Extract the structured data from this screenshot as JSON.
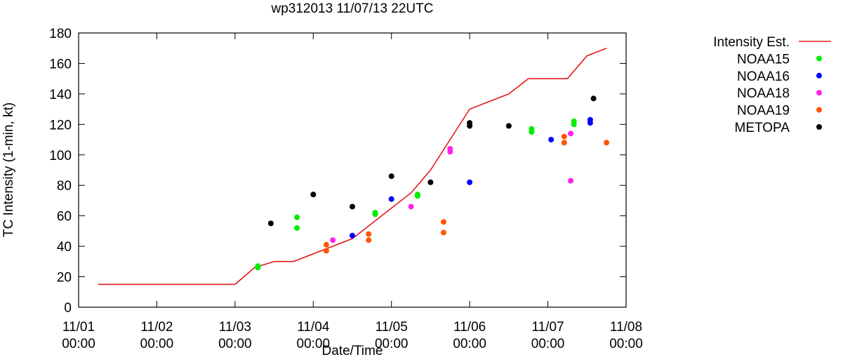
{
  "chart_data": {
    "type": "scatter",
    "title": "wp312013 11/07/13 22UTC",
    "xlabel": "Date/Time",
    "ylabel": "TC Intensity (1-min, kt)",
    "ylim": [
      0,
      180
    ],
    "yticks": [
      0,
      20,
      40,
      60,
      80,
      100,
      120,
      140,
      160,
      180
    ],
    "xlim": [
      "2013-11-01T00:00",
      "2013-11-08T00:00"
    ],
    "xticks": [
      {
        "line1": "11/01",
        "line2": "00:00"
      },
      {
        "line1": "11/02",
        "line2": "00:00"
      },
      {
        "line1": "11/03",
        "line2": "00:00"
      },
      {
        "line1": "11/04",
        "line2": "00:00"
      },
      {
        "line1": "11/05",
        "line2": "00:00"
      },
      {
        "line1": "11/06",
        "line2": "00:00"
      },
      {
        "line1": "11/07",
        "line2": "00:00"
      },
      {
        "line1": "11/08",
        "line2": "00:00"
      }
    ],
    "legend_position": "right",
    "grid": false,
    "series": [
      {
        "name": "Intensity Est.",
        "kind": "line",
        "color": "#e41a1c",
        "points": [
          [
            "2013-11-01T06:00",
            15
          ],
          [
            "2013-11-03T00:00",
            15
          ],
          [
            "2013-11-03T06:00",
            26
          ],
          [
            "2013-11-03T12:00",
            30
          ],
          [
            "2013-11-03T18:00",
            30
          ],
          [
            "2013-11-04T12:00",
            45
          ],
          [
            "2013-11-05T00:00",
            65
          ],
          [
            "2013-11-05T06:00",
            75
          ],
          [
            "2013-11-05T12:00",
            90
          ],
          [
            "2013-11-06T00:00",
            130
          ],
          [
            "2013-11-06T12:00",
            140
          ],
          [
            "2013-11-06T18:00",
            150
          ],
          [
            "2013-11-07T00:00",
            150
          ],
          [
            "2013-11-07T06:00",
            150
          ],
          [
            "2013-11-07T12:00",
            165
          ],
          [
            "2013-11-07T18:00",
            170
          ]
        ]
      },
      {
        "name": "NOAA15",
        "kind": "scatter",
        "color": "#00ee00",
        "points": [
          [
            "2013-11-03T07:00",
            27
          ],
          [
            "2013-11-03T07:00",
            26
          ],
          [
            "2013-11-03T19:00",
            59
          ],
          [
            "2013-11-03T19:00",
            52
          ],
          [
            "2013-11-04T19:00",
            62
          ],
          [
            "2013-11-04T19:00",
            61
          ],
          [
            "2013-11-05T08:00",
            74
          ],
          [
            "2013-11-05T08:00",
            73
          ],
          [
            "2013-11-06T19:00",
            117
          ],
          [
            "2013-11-06T19:00",
            115
          ],
          [
            "2013-11-07T08:00",
            122
          ],
          [
            "2013-11-07T08:00",
            120
          ]
        ]
      },
      {
        "name": "NOAA16",
        "kind": "scatter",
        "color": "#0000ff",
        "points": [
          [
            "2013-11-04T12:00",
            47
          ],
          [
            "2013-11-05T00:00",
            71
          ],
          [
            "2013-11-06T00:00",
            82
          ],
          [
            "2013-11-07T01:00",
            110
          ],
          [
            "2013-11-07T13:00",
            123
          ],
          [
            "2013-11-07T13:00",
            121
          ]
        ]
      },
      {
        "name": "NOAA18",
        "kind": "scatter",
        "color": "#ff22ee",
        "points": [
          [
            "2013-11-04T06:00",
            44
          ],
          [
            "2013-11-05T06:00",
            66
          ],
          [
            "2013-11-05T18:00",
            104
          ],
          [
            "2013-11-05T18:00",
            102
          ],
          [
            "2013-11-07T07:00",
            114
          ],
          [
            "2013-11-07T07:00",
            83
          ]
        ]
      },
      {
        "name": "NOAA19",
        "kind": "scatter",
        "color": "#ff5500",
        "points": [
          [
            "2013-11-04T04:00",
            41
          ],
          [
            "2013-11-04T04:00",
            37
          ],
          [
            "2013-11-04T17:00",
            48
          ],
          [
            "2013-11-04T17:00",
            44
          ],
          [
            "2013-11-05T16:00",
            56
          ],
          [
            "2013-11-05T16:00",
            49
          ],
          [
            "2013-11-07T05:00",
            112
          ],
          [
            "2013-11-07T05:00",
            108
          ],
          [
            "2013-11-07T18:00",
            108
          ]
        ]
      },
      {
        "name": "METOPA",
        "kind": "scatter",
        "color": "#000000",
        "points": [
          [
            "2013-11-03T11:00",
            55
          ],
          [
            "2013-11-04T00:00",
            74
          ],
          [
            "2013-11-04T12:00",
            66
          ],
          [
            "2013-11-05T00:00",
            86
          ],
          [
            "2013-11-05T12:00",
            82
          ],
          [
            "2013-11-06T00:00",
            121
          ],
          [
            "2013-11-06T00:00",
            119
          ],
          [
            "2013-11-06T12:00",
            119
          ],
          [
            "2013-11-07T14:00",
            137
          ]
        ]
      }
    ]
  }
}
